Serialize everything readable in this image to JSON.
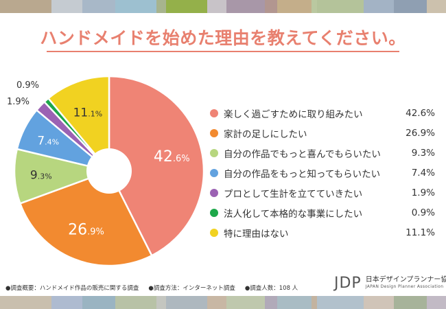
{
  "stripes": {
    "top": [
      "#b9a88f",
      "#c5cbd1",
      "#a8b8c8",
      "#9dc0d0",
      "#a7b48e",
      "#94b04a",
      "#c8c3c8",
      "#a897a8",
      "#b29690",
      "#c4ae8a",
      "#bac8a0",
      "#b4c39a",
      "#a3b3c5",
      "#8f9fb2",
      "#ccc1ad"
    ],
    "bottom": [
      "#c9bfae",
      "#aebbd0",
      "#9ab4c2",
      "#b8c2a6",
      "#c4c6c0",
      "#aeb8bf",
      "#c8b7a4",
      "#bfc8ad",
      "#b1aab9",
      "#a9bcc4",
      "#c3b3a0",
      "#b2c1cc",
      "#d0c4b8",
      "#a7b39a",
      "#c2bac5"
    ]
  },
  "title": "ハンドメイドを始めた理由を教えてください。",
  "chart_data": {
    "type": "pie",
    "style": "donut",
    "title": "ハンドメイドを始めた理由を教えてください。",
    "unit": "%",
    "slices": [
      {
        "label": "楽しく過ごすために取り組みたい",
        "value": 42.6,
        "int": "42",
        "dec": ".6%",
        "color": "#ef8475"
      },
      {
        "label": "家計の足しにしたい",
        "value": 26.9,
        "int": "26",
        "dec": ".9%",
        "color": "#f28a30"
      },
      {
        "label": "自分の作品でもっと喜んでもらいたい",
        "value": 9.3,
        "int": "9",
        "dec": ".3%",
        "color": "#b7d67f"
      },
      {
        "label": "自分の作品をもっと知ってもらいたい",
        "value": 7.4,
        "int": "7",
        "dec": ".4%",
        "color": "#62a2df"
      },
      {
        "label": "プロとして生計を立てていきたい",
        "value": 1.9,
        "int": "1",
        "dec": ".9%",
        "color": "#9b62b3"
      },
      {
        "label": "法人化して本格的な事業にしたい",
        "value": 0.9,
        "int": "0",
        "dec": ".9%",
        "color": "#1da84a"
      },
      {
        "label": "特に理由はない",
        "value": 11.1,
        "int": "11",
        "dec": ".1%",
        "color": "#f1d221"
      }
    ],
    "legend": [
      {
        "label": "楽しく過ごすために取り組みたい",
        "value": "42.6%"
      },
      {
        "label": "家計の足しにしたい",
        "value": "26.9%"
      },
      {
        "label": "自分の作品でもっと喜んでもらいたい",
        "value": "9.3%"
      },
      {
        "label": "自分の作品をもっと知ってもらいたい",
        "value": "7.4%"
      },
      {
        "label": "プロとして生計を立てていきたい",
        "value": "1.9%"
      },
      {
        "label": "法人化して本格的な事業にしたい",
        "value": "0.9%"
      },
      {
        "label": "特に理由はない",
        "value": "11.1%"
      }
    ],
    "legend_position": "right"
  },
  "footer": {
    "overview": "●調査概要：ハンドメイド作品の販売に関する調査",
    "method": "●調査方法：インターネット調査",
    "respondents": "●調査人数：108 人"
  },
  "logo": {
    "mark": "JDP",
    "name_ja": "日本デザインプランナー協会",
    "name_en": "JAPAN Design Planner Association"
  }
}
